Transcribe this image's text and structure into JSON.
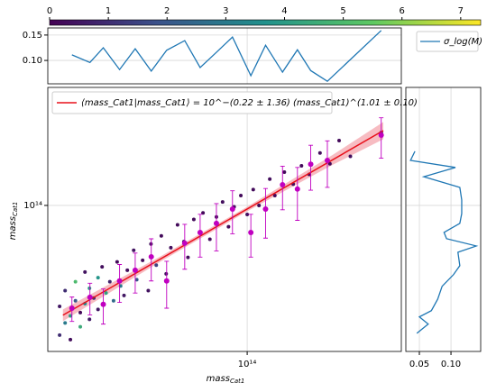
{
  "chart_data": {
    "type": "scatter",
    "colorbar": {
      "clim": [
        0,
        7.34
      ],
      "ticks": [
        0,
        1,
        2,
        3,
        4,
        5,
        6,
        7
      ]
    },
    "main": {
      "xlabel": "mass",
      "xlabel_sub": "Cat1",
      "ylabel": "mass",
      "ylabel_sub": "Cat1",
      "xlim": [
        20000000000000.0,
        347000000000000.0
      ],
      "ylim": [
        12700000000000.0,
        530000000000000.0
      ],
      "xticks": [
        {
          "value": 100000000000000.0,
          "label": "10¹⁴"
        }
      ],
      "yticks": [
        {
          "value": 100000000000000.0,
          "label": "10¹⁴"
        }
      ],
      "log": true,
      "grid": true,
      "points": {
        "x": [
          22000000000000.0,
          22000000000000.0,
          23000000000000.0,
          23000000000000.0,
          24000000000000.0,
          24000000000000.0,
          25000000000000.0,
          25000000000000.0,
          26000000000000.0,
          26000000000000.0,
          27000000000000.0,
          27000000000000.0,
          28000000000000.0,
          28000000000000.0,
          29000000000000.0,
          30000000000000.0,
          30000000000000.0,
          31000000000000.0,
          32000000000000.0,
          33000000000000.0,
          34000000000000.0,
          35000000000000.0,
          36000000000000.0,
          37000000000000.0,
          38000000000000.0,
          40000000000000.0,
          41000000000000.0,
          43000000000000.0,
          45000000000000.0,
          46000000000000.0,
          48000000000000.0,
          50000000000000.0,
          52000000000000.0,
          54000000000000.0,
          57000000000000.0,
          60000000000000.0,
          62000000000000.0,
          65000000000000.0,
          68000000000000.0,
          70000000000000.0,
          74000000000000.0,
          78000000000000.0,
          82000000000000.0,
          86000000000000.0,
          90000000000000.0,
          95000000000000.0,
          100000000000000.0,
          105000000000000.0,
          110000000000000.0,
          120000000000000.0,
          125000000000000.0,
          135000000000000.0,
          145000000000000.0,
          155000000000000.0,
          165000000000000.0,
          180000000000000.0,
          195000000000000.0,
          210000000000000.0,
          230000000000000.0,
          295000000000000.0
        ],
        "y": [
          16000000000000.0,
          24000000000000.0,
          19000000000000.0,
          30000000000000.0,
          21000000000000.0,
          15000000000000.0,
          26000000000000.0,
          34000000000000.0,
          22000000000000.0,
          18000000000000.0,
          39000000000000.0,
          25000000000000.0,
          20000000000000.0,
          31000000000000.0,
          27000000000000.0,
          36000000000000.0,
          23000000000000.0,
          42000000000000.0,
          29000000000000.0,
          34000000000000.0,
          26000000000000.0,
          45000000000000.0,
          32000000000000.0,
          28000000000000.0,
          40000000000000.0,
          53000000000000.0,
          35000000000000.0,
          46000000000000.0,
          30000000000000.0,
          58000000000000.0,
          43000000000000.0,
          65000000000000.0,
          38000000000000.0,
          55000000000000.0,
          76000000000000.0,
          60000000000000.0,
          48000000000000.0,
          82000000000000.0,
          68000000000000.0,
          90000000000000.0,
          62000000000000.0,
          85000000000000.0,
          105000000000000.0,
          74000000000000.0,
          98000000000000.0,
          115000000000000.0,
          88000000000000.0,
          125000000000000.0,
          100000000000000.0,
          145000000000000.0,
          115000000000000.0,
          160000000000000.0,
          135000000000000.0,
          175000000000000.0,
          155000000000000.0,
          210000000000000.0,
          180000000000000.0,
          250000000000000.0,
          200000000000000.0,
          280000000000000.0
        ],
        "c": [
          1,
          0.5,
          3,
          1,
          4,
          0.3,
          2,
          5,
          0.2,
          4.5,
          0.4,
          3.5,
          0.6,
          4,
          1,
          3.8,
          0.5,
          0.3,
          4.2,
          0.8,
          2.5,
          0.2,
          3,
          0.5,
          0.3,
          0.4,
          2,
          0.2,
          0.4,
          0.3,
          1.5,
          0.2,
          0.4,
          0.3,
          0.2,
          0.5,
          0.3,
          0.2,
          0.4,
          0.2,
          0.3,
          0.2,
          0.3,
          0.2,
          0.3,
          0.2,
          0.3,
          0.2,
          0.2,
          0.3,
          0.2,
          0.2,
          0.3,
          0.2,
          0.2,
          0.3,
          0.2,
          0.2,
          0.3,
          0.2
        ]
      },
      "bins": {
        "color": "#c000c0",
        "x": [
          24300000000000.0,
          28100000000000.0,
          31300000000000.0,
          35700000000000.0,
          40500000000000.0,
          46100000000000.0,
          52200000000000.0,
          60400000000000.0,
          68400000000000.0,
          78000000000000.0,
          88800000000000.0,
          103000000000000.0,
          116000000000000.0,
          133000000000000.0,
          150000000000000.0,
          167000000000000.0,
          191000000000000.0,
          295000000000000.0
        ],
        "y": [
          23400000000000.0,
          27300000000000.0,
          24700000000000.0,
          34400000000000.0,
          40000000000000.0,
          48400000000000.0,
          34400000000000.0,
          58600000000000.0,
          68200000000000.0,
          77600000000000.0,
          95000000000000.0,
          68200000000000.0,
          95000000000000.0,
          134000000000000.0,
          126000000000000.0,
          179000000000000.0,
          189000000000000.0,
          270000000000000.0
        ],
        "errors": [
          4000000000000.0,
          6000000000000.0,
          6000000000000.0,
          9000000000000.0,
          11000000000000.0,
          14000000000000.0,
          11000000000000.0,
          18000000000000.0,
          20000000000000.0,
          25000000000000.0,
          28000000000000.0,
          20000000000000.0,
          32000000000000.0,
          40000000000000.0,
          45000000000000.0,
          55000000000000.0,
          60000000000000.0,
          75000000000000.0
        ]
      },
      "fit": {
        "name": "⟨mass_Cat1|mass_Cat1⟩ = 10^−(0.22 ± 1.36) (mass_Cat1)^(1.01 ± 0.10)",
        "color": "#e8101a",
        "band_color": "#f4a0a8",
        "x": [
          22600000000000.0,
          300000000000000.0
        ],
        "y": [
          21200000000000.0,
          288000000000000.0
        ],
        "band_x": [
          22600000000000.0,
          50000000000000.0,
          100000000000000.0,
          200000000000000.0,
          300000000000000.0
        ],
        "band_low": [
          19500000000000.0,
          45500000000000.0,
          92000000000000.0,
          178000000000000.0,
          255000000000000.0
        ],
        "band_high": [
          23000000000000.0,
          49000000000000.0,
          98000000000000.0,
          205000000000000.0,
          325000000000000.0
        ]
      }
    },
    "top": {
      "ylim": [
        0.054,
        0.164
      ],
      "yticks": [
        {
          "value": 0.1,
          "label": "0.10"
        },
        0.15
      ],
      "series": [
        {
          "name": "σ_log(M)",
          "color": "#1f77b4",
          "x": [
            24300000000000.0,
            28100000000000.0,
            31300000000000.0,
            35700000000000.0,
            40500000000000.0,
            46100000000000.0,
            52200000000000.0,
            60400000000000.0,
            68400000000000.0,
            78000000000000.0,
            88800000000000.0,
            103000000000000.0,
            116000000000000.0,
            133000000000000.0,
            150000000000000.0,
            167000000000000.0,
            191000000000000.0,
            295000000000000.0
          ],
          "values": [
            0.111,
            0.096,
            0.125,
            0.082,
            0.123,
            0.079,
            0.12,
            0.139,
            0.086,
            0.116,
            0.146,
            0.07,
            0.13,
            0.077,
            0.121,
            0.08,
            0.059,
            0.159
          ]
        }
      ]
    },
    "right": {
      "xlim": [
        0.0286,
        0.147
      ],
      "xticks": [
        0.05,
        {
          "value": 0.1,
          "label": "0.10"
        }
      ],
      "color": "#1f77b4",
      "x": [
        0.043,
        0.036,
        0.107,
        0.057,
        0.114,
        0.117,
        0.117,
        0.114,
        0.089,
        0.093,
        0.14,
        0.111,
        0.114,
        0.104,
        0.086,
        0.079,
        0.069,
        0.05,
        0.064,
        0.046
      ],
      "y": [
        215000000000000.0,
        189000000000000.0,
        171000000000000.0,
        150000000000000.0,
        129000000000000.0,
        108000000000000.0,
        89100000000000.0,
        77600000000000.0,
        68300000000000.0,
        62500000000000.0,
        56400000000000.0,
        51600000000000.0,
        42700000000000.0,
        37600000000000.0,
        31900000000000.0,
        26600000000000.0,
        22600000000000.0,
        20700000000000.0,
        18700000000000.0,
        16400000000000.0
      ]
    }
  }
}
